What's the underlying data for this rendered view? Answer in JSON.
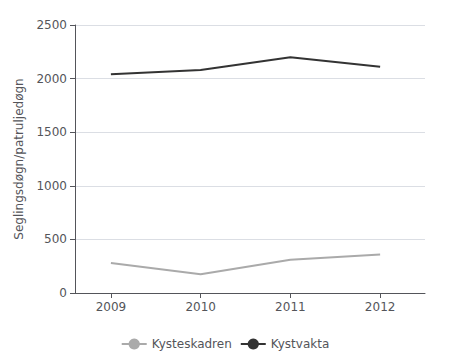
{
  "chart_data": {
    "type": "line",
    "ylabel": "Seglingsdøgn/patruljedøgn",
    "x": [
      2009,
      2010,
      2011,
      2012
    ],
    "series": [
      {
        "name": "Kysteskadren",
        "color": "#aaaaaa",
        "values": [
          280,
          175,
          310,
          360
        ]
      },
      {
        "name": "Kystvakta",
        "color": "#333333",
        "values": [
          2040,
          2080,
          2200,
          2110
        ]
      }
    ],
    "xlim": [
      2008.6,
      2012.5
    ],
    "xticks": [
      2009,
      2010,
      2011,
      2012
    ],
    "ylim": [
      0,
      2500
    ],
    "yticks": [
      0,
      500,
      1000,
      1500,
      2000,
      2500
    ],
    "grid": true,
    "legend": "bottom"
  }
}
